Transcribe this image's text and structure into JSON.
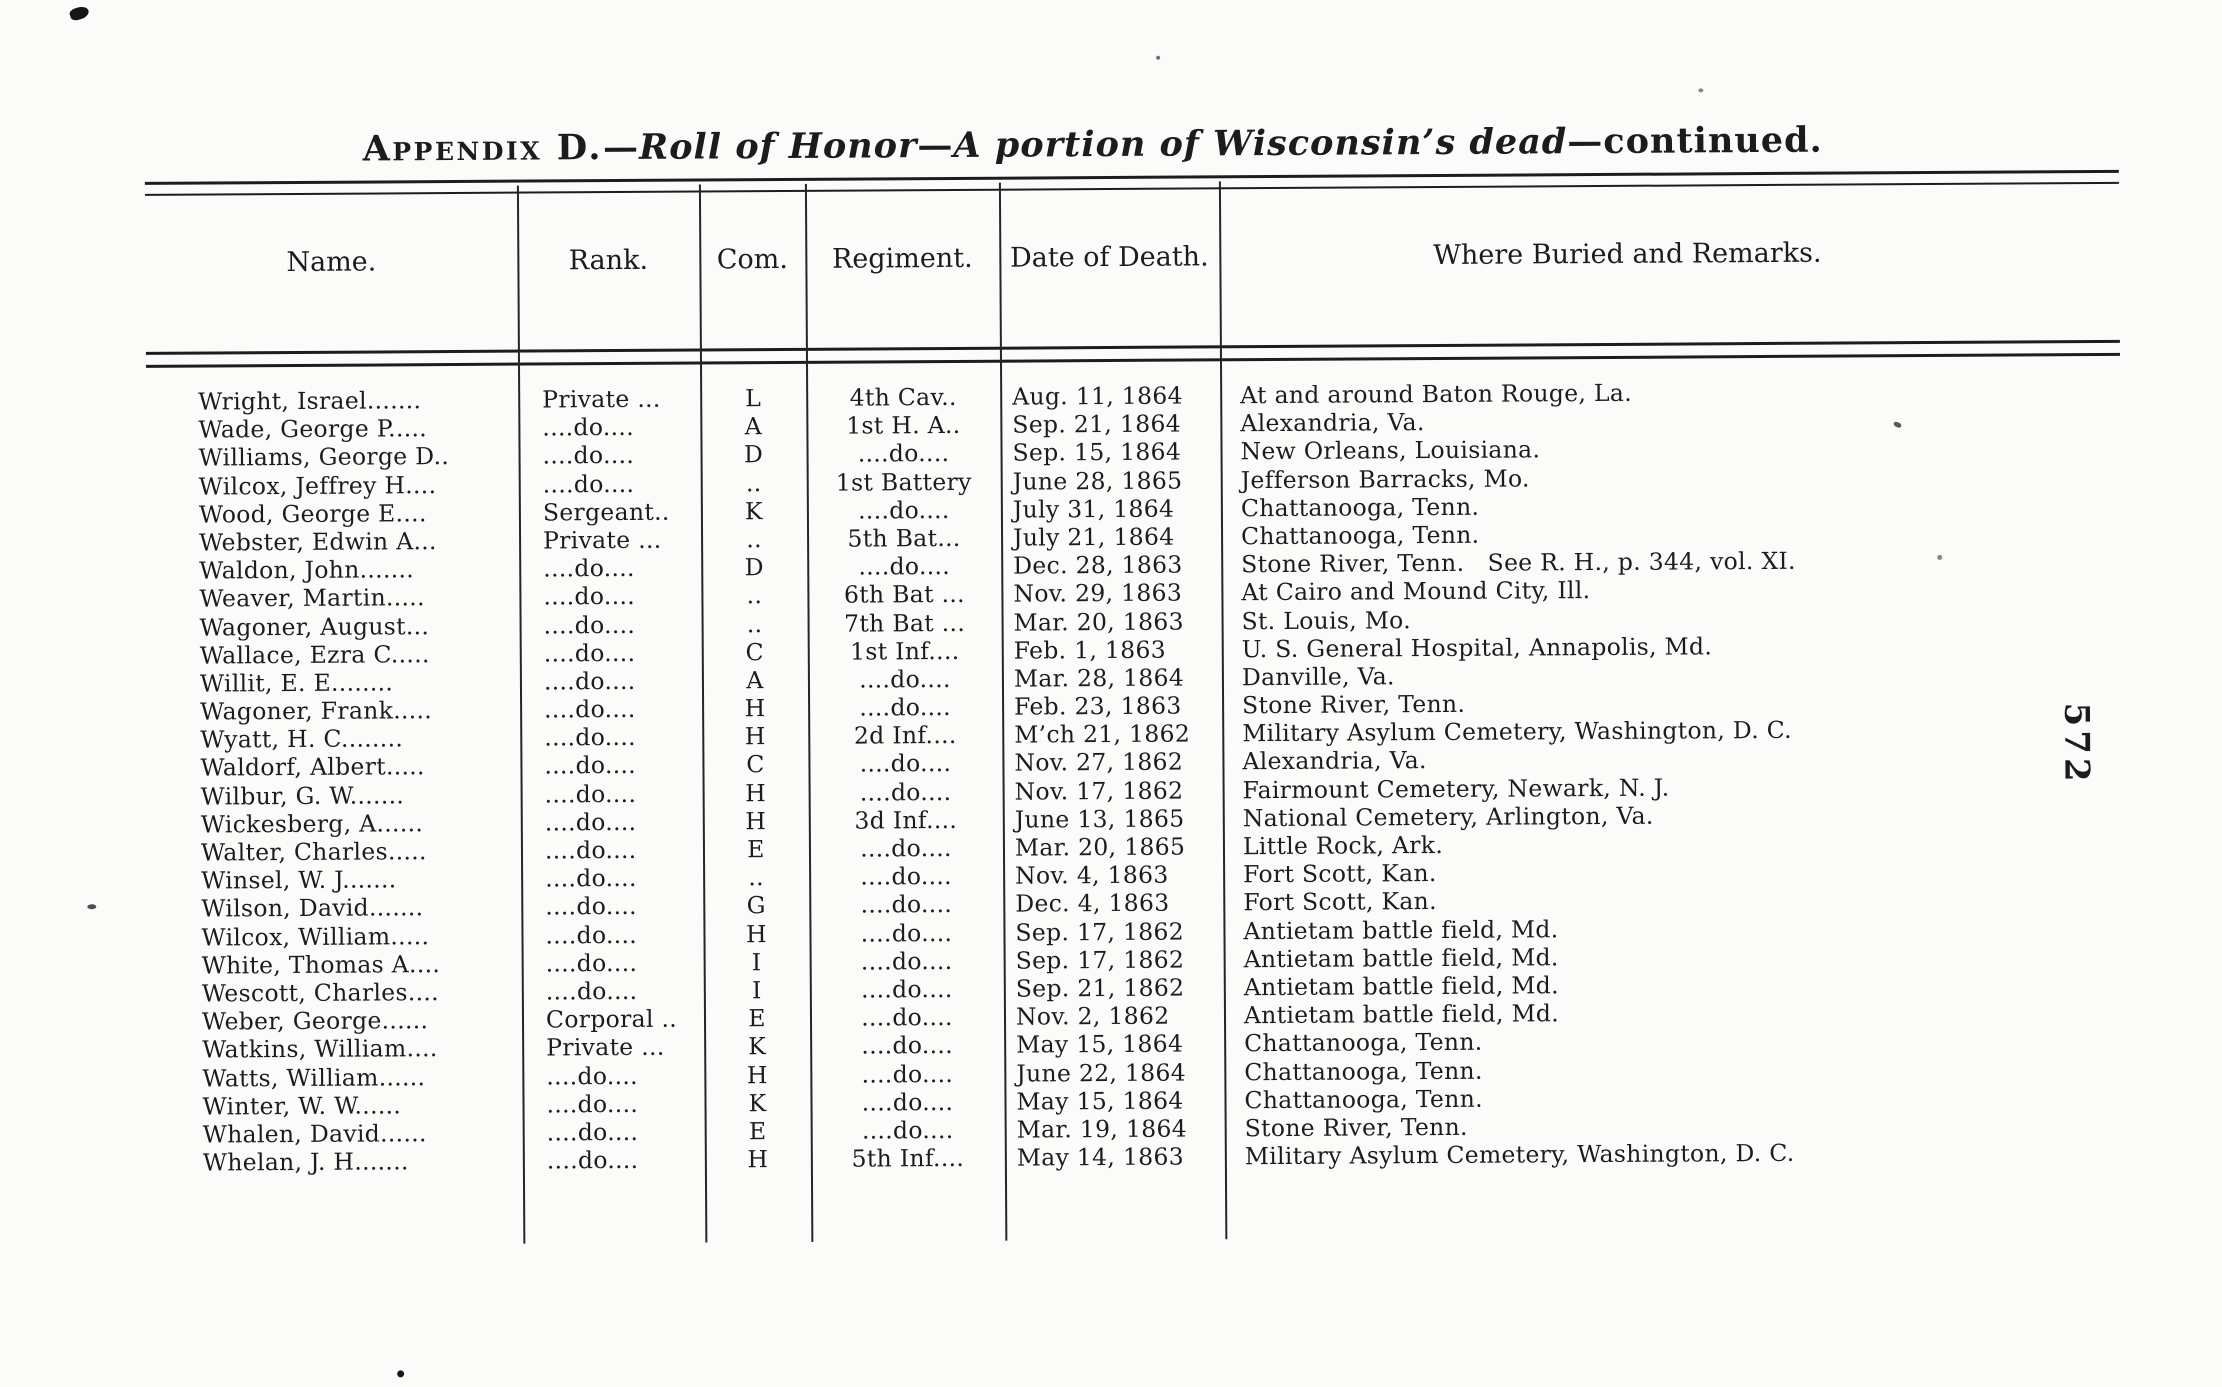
{
  "page": {
    "page_number": "572",
    "title_parts": [
      {
        "text": "Appendix D.",
        "style": "smallcaps"
      },
      {
        "text": "—",
        "style": "roman"
      },
      {
        "text": "Roll of Honor",
        "style": "italic"
      },
      {
        "text": "—",
        "style": "roman"
      },
      {
        "text": "A portion of Wisconsin’s dead",
        "style": "italic"
      },
      {
        "text": "—continued.",
        "style": "roman"
      }
    ]
  },
  "table": {
    "columns": [
      {
        "key": "name",
        "label": "Name."
      },
      {
        "key": "rank",
        "label": "Rank."
      },
      {
        "key": "com",
        "label": "Com."
      },
      {
        "key": "regiment",
        "label": "Regiment."
      },
      {
        "key": "date",
        "label": "Date of Death."
      },
      {
        "key": "remarks",
        "label": "Where Buried and Remarks."
      }
    ],
    "rows": [
      {
        "name": "Wright, Israel.......",
        "rank": "Private ...",
        "com": "L",
        "regiment": "4th Cav..",
        "date": "Aug. 11, 1864",
        "remarks": "At and around Baton Rouge, La."
      },
      {
        "name": "Wade, George P.....",
        "rank": "....do....",
        "com": "A",
        "regiment": "1st H. A..",
        "date": "Sep. 21, 1864",
        "remarks": "Alexandria, Va."
      },
      {
        "name": "Williams, George D..",
        "rank": "....do....",
        "com": "D",
        "regiment": "....do....",
        "date": "Sep. 15, 1864",
        "remarks": "New Orleans, Louisiana."
      },
      {
        "name": "Wilcox, Jeffrey H....",
        "rank": "....do....",
        "com": "..",
        "regiment": "1st Battery",
        "date": "June 28, 1865",
        "remarks": "Jefferson Barracks, Mo."
      },
      {
        "name": "Wood, George E....",
        "rank": "Sergeant..",
        "com": "K",
        "regiment": "....do....",
        "date": "July 31, 1864",
        "remarks": "Chattanooga, Tenn."
      },
      {
        "name": "Webster, Edwin A...",
        "rank": "Private ...",
        "com": "..",
        "regiment": "5th Bat...",
        "date": "July 21, 1864",
        "remarks": "Chattanooga, Tenn."
      },
      {
        "name": "Waldon, John.......",
        "rank": "....do....",
        "com": "D",
        "regiment": "....do....",
        "date": "Dec. 28, 1863",
        "remarks": "Stone River, Tenn.   See R. H., p. 344, vol. XI."
      },
      {
        "name": "Weaver, Martin.....",
        "rank": "....do....",
        "com": "..",
        "regiment": "6th Bat ...",
        "date": "Nov. 29, 1863",
        "remarks": "At Cairo and Mound City, Ill."
      },
      {
        "name": "Wagoner, August...",
        "rank": "....do....",
        "com": "..",
        "regiment": "7th Bat ...",
        "date": "Mar. 20, 1863",
        "remarks": "St. Louis, Mo."
      },
      {
        "name": "Wallace, Ezra C.....",
        "rank": "....do....",
        "com": "C",
        "regiment": "1st Inf....",
        "date": "Feb. 1, 1863",
        "remarks": "U. S. General Hospital, Annapolis, Md."
      },
      {
        "name": "Willit, E. E........",
        "rank": "....do....",
        "com": "A",
        "regiment": "....do....",
        "date": "Mar. 28, 1864",
        "remarks": "Danville, Va."
      },
      {
        "name": "Wagoner, Frank.....",
        "rank": "....do....",
        "com": "H",
        "regiment": "....do....",
        "date": "Feb. 23, 1863",
        "remarks": "Stone River, Tenn."
      },
      {
        "name": "Wyatt, H. C........",
        "rank": "....do....",
        "com": "H",
        "regiment": "2d Inf....",
        "date": "M’ch 21, 1862",
        "remarks": "Military Asylum Cemetery, Washington, D. C."
      },
      {
        "name": "Waldorf, Albert.....",
        "rank": "....do....",
        "com": "C",
        "regiment": "....do....",
        "date": "Nov. 27, 1862",
        "remarks": "Alexandria, Va."
      },
      {
        "name": "Wilbur, G. W.......",
        "rank": "....do....",
        "com": "H",
        "regiment": "....do....",
        "date": "Nov. 17, 1862",
        "remarks": "Fairmount Cemetery, Newark, N. J."
      },
      {
        "name": "Wickesberg, A......",
        "rank": "....do....",
        "com": "H",
        "regiment": "3d Inf....",
        "date": "June 13, 1865",
        "remarks": "National Cemetery, Arlington, Va."
      },
      {
        "name": "Walter, Charles.....",
        "rank": "....do....",
        "com": "E",
        "regiment": "....do....",
        "date": "Mar. 20, 1865",
        "remarks": "Little Rock, Ark."
      },
      {
        "name": "Winsel, W. J.......",
        "rank": "....do....",
        "com": "..",
        "regiment": "....do....",
        "date": "Nov. 4, 1863",
        "remarks": "Fort Scott, Kan."
      },
      {
        "name": "Wilson, David.......",
        "rank": "....do....",
        "com": "G",
        "regiment": "....do....",
        "date": "Dec. 4, 1863",
        "remarks": "Fort Scott, Kan."
      },
      {
        "name": "Wilcox, William.....",
        "rank": "....do....",
        "com": "H",
        "regiment": "....do....",
        "date": "Sep. 17, 1862",
        "remarks": "Antietam battle field, Md."
      },
      {
        "name": "White, Thomas A....",
        "rank": "....do....",
        "com": "I",
        "regiment": "....do....",
        "date": "Sep. 17, 1862",
        "remarks": "Antietam battle field, Md."
      },
      {
        "name": "Wescott, Charles....",
        "rank": "....do....",
        "com": "I",
        "regiment": "....do....",
        "date": "Sep. 21, 1862",
        "remarks": "Antietam battle field, Md."
      },
      {
        "name": "Weber, George......",
        "rank": "Corporal ..",
        "com": "E",
        "regiment": "....do....",
        "date": "Nov. 2, 1862",
        "remarks": "Antietam battle field, Md."
      },
      {
        "name": "Watkins, William....",
        "rank": "Private ...",
        "com": "K",
        "regiment": "....do....",
        "date": "May 15, 1864",
        "remarks": "Chattanooga, Tenn."
      },
      {
        "name": "Watts, William......",
        "rank": "....do....",
        "com": "H",
        "regiment": "....do....",
        "date": "June 22, 1864",
        "remarks": "Chattanooga, Tenn."
      },
      {
        "name": "Winter, W. W......",
        "rank": "....do....",
        "com": "K",
        "regiment": "....do....",
        "date": "May 15, 1864",
        "remarks": "Chattanooga, Tenn."
      },
      {
        "name": "Whalen, David......",
        "rank": "....do....",
        "com": "E",
        "regiment": "....do....",
        "date": "Mar. 19, 1864",
        "remarks": "Stone River, Tenn."
      },
      {
        "name": "Whelan, J. H.......",
        "rank": "....do....",
        "com": "H",
        "regiment": "5th Inf....",
        "date": "May 14, 1863",
        "remarks": "Military Asylum Cemetery, Washington, D. C."
      }
    ]
  }
}
